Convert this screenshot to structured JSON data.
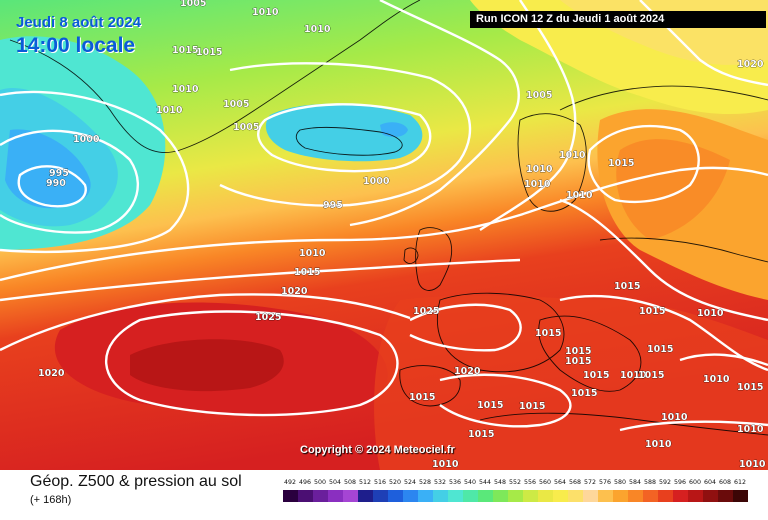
{
  "header": {
    "date": "Jeudi 8 août 2024",
    "time": "14:00 locale",
    "run": "Run ICON 12 Z du Jeudi 1 août 2024"
  },
  "copyright": "Copyright © 2024 Meteociel.fr",
  "footer": {
    "title": "Géop. Z500 & pression au sol",
    "subtitle": "(+ 168h)"
  },
  "scale": {
    "ticks": [
      "492",
      "496",
      "500",
      "504",
      "508",
      "512",
      "516",
      "520",
      "524",
      "528",
      "532",
      "536",
      "540",
      "544",
      "548",
      "552",
      "556",
      "560",
      "564",
      "568",
      "572",
      "576",
      "580",
      "584",
      "588",
      "592",
      "596",
      "600",
      "604",
      "608",
      "612"
    ],
    "colors": [
      "#2a003e",
      "#4b0f73",
      "#6a1f9c",
      "#8a2fc0",
      "#a545d4",
      "#1e1e8c",
      "#1e3fb6",
      "#1e5fdc",
      "#2c86f0",
      "#3ab0f6",
      "#44cfe6",
      "#4fe6d2",
      "#4fe8a8",
      "#5ae87a",
      "#7ee85a",
      "#a6ea48",
      "#cdea45",
      "#eae845",
      "#f8ec4c",
      "#fce06a",
      "#fed79a",
      "#fdc04e",
      "#fba42e",
      "#f98626",
      "#f36324",
      "#e8401e",
      "#d62020",
      "#b81616",
      "#901010",
      "#6a0b0b",
      "#3c0606"
    ]
  },
  "isobar_labels": [
    "1005",
    "1010",
    "1010",
    "1015",
    "1015",
    "1010",
    "1010",
    "1005",
    "1005",
    "1000",
    "995",
    "990",
    "1000",
    "995",
    "1005",
    "1010",
    "1010",
    "1010",
    "1010",
    "1015",
    "1020",
    "1010",
    "1015",
    "1020",
    "1025",
    "1025",
    "1020",
    "1020",
    "1015",
    "1015",
    "1015",
    "1015",
    "1015",
    "1015",
    "1015",
    "1015",
    "1010",
    "1015",
    "1010",
    "1010",
    "1015",
    "1010",
    "1010",
    "1015",
    "1015",
    "1015",
    "1015",
    "1010",
    "1010",
    "1010"
  ]
}
